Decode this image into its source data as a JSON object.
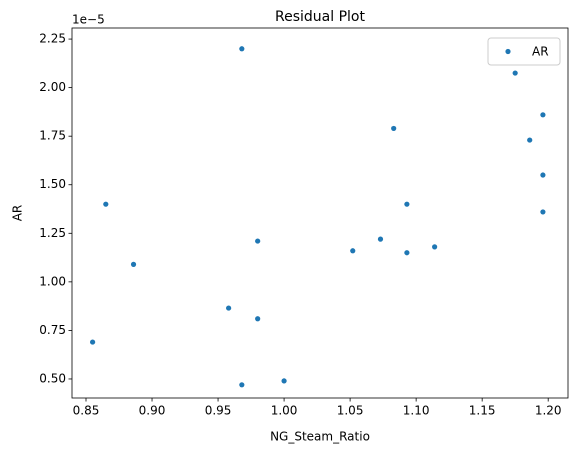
{
  "chart_data": {
    "type": "scatter",
    "title": "Residual Plot",
    "x_label": "NG_Steam_Ratio",
    "y_label": "AR",
    "y_offset_text": "1e−5",
    "series": [
      {
        "name": "AR",
        "color": "#1f77b4",
        "x": [
          0.855,
          0.865,
          0.886,
          0.958,
          0.968,
          0.968,
          0.98,
          0.98,
          1.0,
          1.052,
          1.073,
          1.083,
          1.093,
          1.093,
          1.114,
          1.175,
          1.186,
          1.196,
          1.196,
          1.196
        ],
        "values": [
          0.69,
          1.4,
          1.09,
          0.865,
          2.2,
          0.47,
          1.21,
          0.81,
          0.49,
          1.16,
          1.22,
          1.79,
          1.4,
          1.15,
          1.18,
          2.075,
          1.73,
          1.86,
          1.55,
          1.36
        ]
      }
    ],
    "xlim": [
      0.8394,
      1.215
    ],
    "xticks": [
      0.85,
      {
        "value": 0.9,
        "label": "0.90"
      },
      0.95,
      {
        "value": 1.0,
        "label": "1.00"
      },
      1.05,
      {
        "value": 1.1,
        "label": "1.10"
      },
      1.15,
      {
        "value": 1.2,
        "label": "1.20"
      }
    ],
    "ylim": [
      0.402,
      2.307
    ],
    "yticks": [
      {
        "value": 0.5,
        "label": "0.50"
      },
      0.75,
      {
        "value": 1.0,
        "label": "1.00"
      },
      1.25,
      {
        "value": 1.5,
        "label": "1.50"
      },
      1.75,
      {
        "value": 2.0,
        "label": "2.00"
      },
      2.25
    ],
    "grid": false,
    "legend": "upper right"
  }
}
